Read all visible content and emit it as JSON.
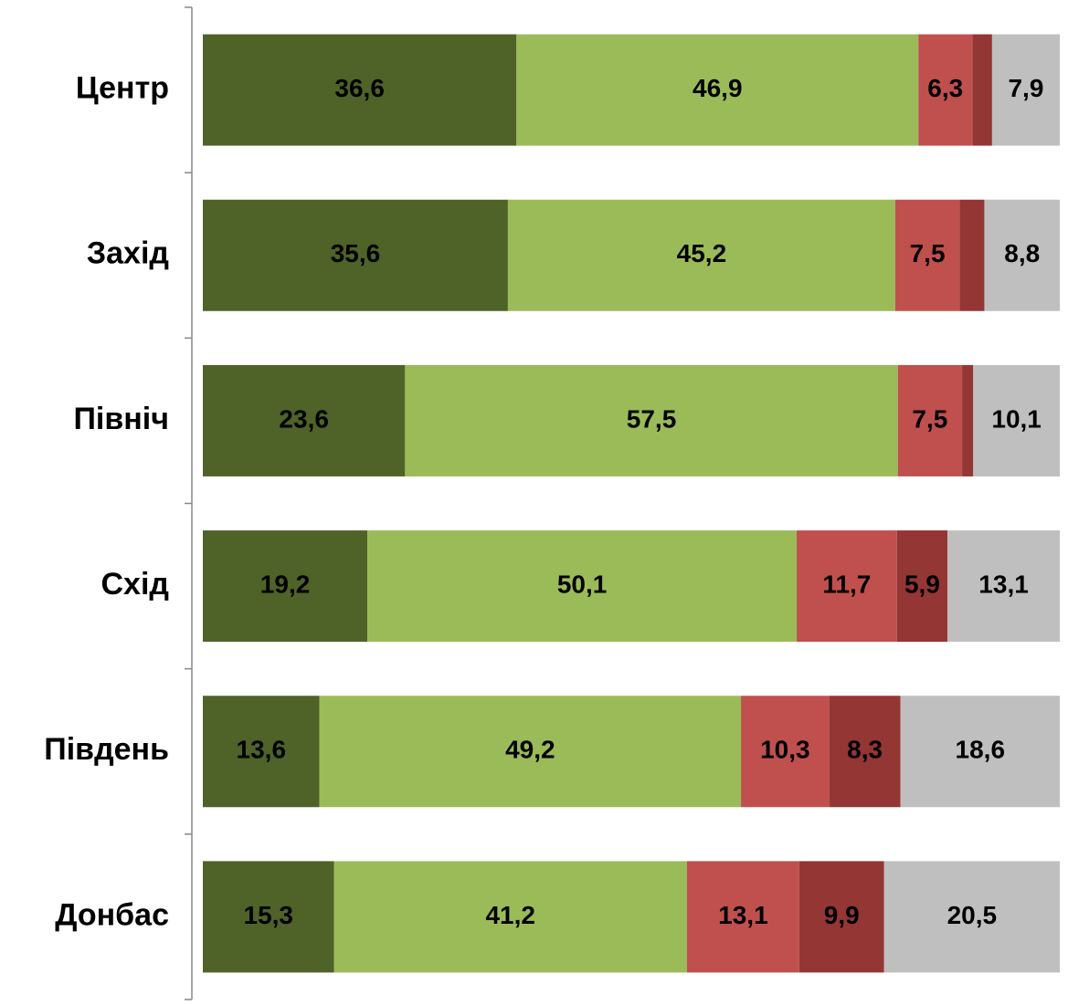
{
  "chart_data": {
    "type": "stacked-bar-horizontal",
    "categories": [
      "Центр",
      "Захід",
      "Північ",
      "Схід",
      "Південь",
      "Донбас"
    ],
    "xlim": [
      0,
      100
    ],
    "series": [
      {
        "color": "#4f6228",
        "values": [
          36.6,
          35.6,
          23.6,
          19.2,
          13.6,
          15.3
        ],
        "value_labels": [
          "36,6",
          "35,6",
          "23,6",
          "19,2",
          "13,6",
          "15,3"
        ]
      },
      {
        "color": "#9bbb59",
        "values": [
          46.9,
          45.2,
          57.5,
          50.1,
          49.2,
          41.2
        ],
        "value_labels": [
          "46,9",
          "45,2",
          "57,5",
          "50,1",
          "49,2",
          "41,2"
        ]
      },
      {
        "color": "#c0504d",
        "values": [
          6.3,
          7.5,
          7.5,
          11.7,
          10.3,
          13.1
        ],
        "value_labels": [
          "6,3",
          "7,5",
          "7,5",
          "11,7",
          "10,3",
          "13,1"
        ]
      },
      {
        "color": "#943634",
        "values": [
          2.3,
          2.9,
          1.3,
          5.9,
          8.3,
          9.9
        ],
        "value_labels": [
          null,
          null,
          null,
          "5,9",
          "8,3",
          "9,9"
        ]
      },
      {
        "color": "#bfbfbf",
        "values": [
          7.9,
          8.8,
          10.1,
          13.1,
          18.6,
          20.5
        ],
        "value_labels": [
          "7,9",
          "8,8",
          "10,1",
          "13,1",
          "18,6",
          "20,5"
        ]
      }
    ]
  }
}
